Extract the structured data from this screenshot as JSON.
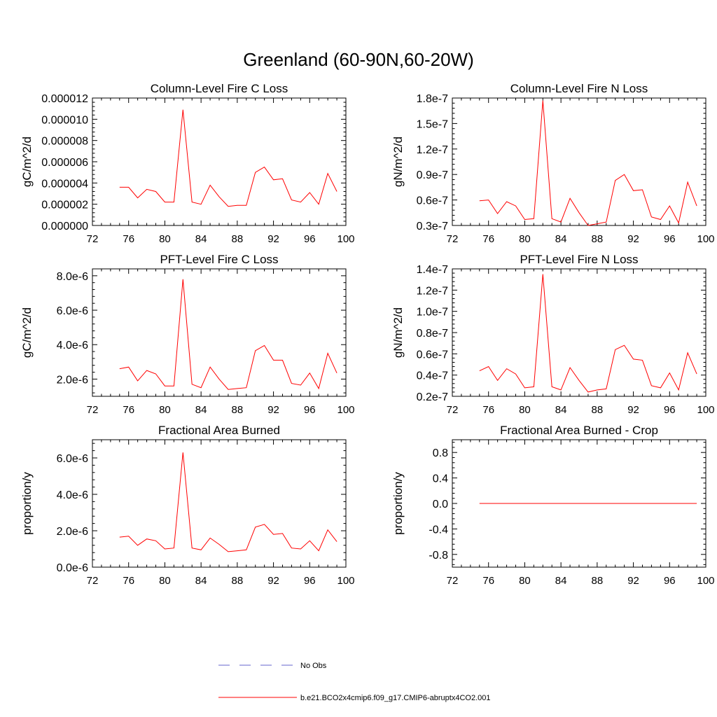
{
  "figure": {
    "title": "Greenland (60-90N,60-20W)"
  },
  "colors": {
    "model_line": "#ff0000",
    "obs_line": "#6666cc",
    "axis": "#000000",
    "background": "#ffffff"
  },
  "legend": {
    "obs_label": "No Obs",
    "model_label": "b.e21.BCO2x4cmip6.f09_g17.CMIP6-abruptx4CO2.001"
  },
  "chart_data": [
    {
      "type": "line",
      "title": "Column-Level Fire C Loss",
      "ylabel": "gC/m^2/d",
      "xlabel": "",
      "xlim": [
        72,
        100
      ],
      "ylim": [
        0,
        1.2e-05
      ],
      "xticks": [
        72,
        76,
        80,
        84,
        88,
        92,
        96,
        100
      ],
      "yticks": [
        0,
        2e-06,
        4e-06,
        6e-06,
        8e-06,
        1e-05,
        1.2e-05
      ],
      "ytick_labels": [
        "0.000000",
        "0.000002",
        "0.000004",
        "0.000006",
        "0.000008",
        "0.000010",
        "0.000012"
      ],
      "x": [
        75,
        76,
        77,
        78,
        79,
        80,
        81,
        82,
        83,
        84,
        85,
        86,
        87,
        88,
        89,
        90,
        91,
        92,
        93,
        94,
        95,
        96,
        97,
        98,
        99
      ],
      "series": [
        {
          "name": "b.e21.BCO2x4cmip6.f09_g17.CMIP6-abruptx4CO2.001",
          "values": [
            3.6e-06,
            3.6e-06,
            2.6e-06,
            3.4e-06,
            3.2e-06,
            2.2e-06,
            2.2e-06,
            1.09e-05,
            2.2e-06,
            2e-06,
            3.8e-06,
            2.7e-06,
            1.8e-06,
            1.9e-06,
            1.9e-06,
            5e-06,
            5.5e-06,
            4.3e-06,
            4.4e-06,
            2.4e-06,
            2.2e-06,
            3.1e-06,
            2e-06,
            4.9e-06,
            3.2e-06
          ]
        }
      ]
    },
    {
      "type": "line",
      "title": "Column-Level Fire N Loss",
      "ylabel": "gN/m^2/d",
      "xlabel": "",
      "xlim": [
        72,
        100
      ],
      "ylim": [
        3e-08,
        1.8e-07
      ],
      "xticks": [
        72,
        76,
        80,
        84,
        88,
        92,
        96,
        100
      ],
      "yticks": [
        3e-08,
        6e-08,
        9e-08,
        1.2e-07,
        1.5e-07,
        1.8e-07
      ],
      "ytick_labels": [
        "0.3e-7",
        "0.6e-7",
        "0.9e-7",
        "1.2e-7",
        "1.5e-7",
        "1.8e-7"
      ],
      "x": [
        75,
        76,
        77,
        78,
        79,
        80,
        81,
        82,
        83,
        84,
        85,
        86,
        87,
        88,
        89,
        90,
        91,
        92,
        93,
        94,
        95,
        96,
        97,
        98,
        99
      ],
      "series": [
        {
          "name": "b.e21.BCO2x4cmip6.f09_g17.CMIP6-abruptx4CO2.001",
          "values": [
            5.9e-08,
            6e-08,
            4.4e-08,
            5.8e-08,
            5.3e-08,
            3.7e-08,
            3.8e-08,
            1.77e-07,
            3.8e-08,
            3.4e-08,
            6.2e-08,
            4.5e-08,
            3e-08,
            3.2e-08,
            3.4e-08,
            8.3e-08,
            9e-08,
            7.1e-08,
            7.2e-08,
            4e-08,
            3.7e-08,
            5.3e-08,
            3.3e-08,
            8.1e-08,
            5.3e-08
          ]
        }
      ]
    },
    {
      "type": "line",
      "title": "PFT-Level Fire C Loss",
      "ylabel": "gC/m^2/d",
      "xlabel": "",
      "xlim": [
        72,
        100
      ],
      "ylim": [
        1e-06,
        8.4e-06
      ],
      "xticks": [
        72,
        76,
        80,
        84,
        88,
        92,
        96,
        100
      ],
      "yticks": [
        2e-06,
        4e-06,
        6e-06,
        8e-06
      ],
      "ytick_labels": [
        "2.0e-6",
        "4.0e-6",
        "6.0e-6",
        "8.0e-6"
      ],
      "x": [
        75,
        76,
        77,
        78,
        79,
        80,
        81,
        82,
        83,
        84,
        85,
        86,
        87,
        88,
        89,
        90,
        91,
        92,
        93,
        94,
        95,
        96,
        97,
        98,
        99
      ],
      "series": [
        {
          "name": "b.e21.BCO2x4cmip6.f09_g17.CMIP6-abruptx4CO2.001",
          "values": [
            2.6e-06,
            2.7e-06,
            1.9e-06,
            2.5e-06,
            2.3e-06,
            1.6e-06,
            1.6e-06,
            7.8e-06,
            1.7e-06,
            1.5e-06,
            2.7e-06,
            2e-06,
            1.4e-06,
            1.45e-06,
            1.5e-06,
            3.65e-06,
            3.95e-06,
            3.1e-06,
            3.1e-06,
            1.75e-06,
            1.65e-06,
            2.35e-06,
            1.45e-06,
            3.5e-06,
            2.35e-06
          ]
        }
      ]
    },
    {
      "type": "line",
      "title": "PFT-Level Fire N Loss",
      "ylabel": "gN/m^2/d",
      "xlabel": "",
      "xlim": [
        72,
        100
      ],
      "ylim": [
        2e-08,
        1.4e-07
      ],
      "xticks": [
        72,
        76,
        80,
        84,
        88,
        92,
        96,
        100
      ],
      "yticks": [
        2e-08,
        4e-08,
        6e-08,
        8e-08,
        1e-07,
        1.2e-07,
        1.4e-07
      ],
      "ytick_labels": [
        "0.2e-7",
        "0.4e-7",
        "0.6e-7",
        "0.8e-7",
        "1.0e-7",
        "1.2e-7",
        "1.4e-7"
      ],
      "x": [
        75,
        76,
        77,
        78,
        79,
        80,
        81,
        82,
        83,
        84,
        85,
        86,
        87,
        88,
        89,
        90,
        91,
        92,
        93,
        94,
        95,
        96,
        97,
        98,
        99
      ],
      "series": [
        {
          "name": "b.e21.BCO2x4cmip6.f09_g17.CMIP6-abruptx4CO2.001",
          "values": [
            4.4e-08,
            4.8e-08,
            3.5e-08,
            4.6e-08,
            4.1e-08,
            2.8e-08,
            2.9e-08,
            1.35e-07,
            2.9e-08,
            2.6e-08,
            4.7e-08,
            3.5e-08,
            2.4e-08,
            2.6e-08,
            2.7e-08,
            6.4e-08,
            6.8e-08,
            5.5e-08,
            5.4e-08,
            3e-08,
            2.8e-08,
            4.2e-08,
            2.6e-08,
            6.1e-08,
            4.1e-08
          ]
        }
      ]
    },
    {
      "type": "line",
      "title": "Fractional Area Burned",
      "ylabel": "proportion/y",
      "xlabel": "",
      "xlim": [
        72,
        100
      ],
      "ylim": [
        0,
        7e-06
      ],
      "xticks": [
        72,
        76,
        80,
        84,
        88,
        92,
        96,
        100
      ],
      "yticks": [
        0,
        2e-06,
        4e-06,
        6e-06
      ],
      "ytick_labels": [
        "0.0e-6",
        "2.0e-6",
        "4.0e-6",
        "6.0e-6"
      ],
      "x": [
        75,
        76,
        77,
        78,
        79,
        80,
        81,
        82,
        83,
        84,
        85,
        86,
        87,
        88,
        89,
        90,
        91,
        92,
        93,
        94,
        95,
        96,
        97,
        98,
        99
      ],
      "series": [
        {
          "name": "b.e21.BCO2x4cmip6.f09_g17.CMIP6-abruptx4CO2.001",
          "values": [
            1.65e-06,
            1.7e-06,
            1.2e-06,
            1.55e-06,
            1.45e-06,
            1e-06,
            1.05e-06,
            6.3e-06,
            1.05e-06,
            9.5e-07,
            1.6e-06,
            1.25e-06,
            8.5e-07,
            9e-07,
            9.5e-07,
            2.2e-06,
            2.35e-06,
            1.8e-06,
            1.85e-06,
            1.05e-06,
            1e-06,
            1.45e-06,
            9e-07,
            2.05e-06,
            1.4e-06
          ]
        }
      ]
    },
    {
      "type": "line",
      "title": "Fractional Area Burned - Crop",
      "ylabel": "proportion/y",
      "xlabel": "",
      "xlim": [
        72,
        100
      ],
      "ylim": [
        -1.0,
        1.0
      ],
      "xticks": [
        72,
        76,
        80,
        84,
        88,
        92,
        96,
        100
      ],
      "yticks": [
        -0.8,
        -0.4,
        0.0,
        0.4,
        0.8
      ],
      "ytick_labels": [
        "-0.8",
        "-0.4",
        "0.0",
        "0.4",
        "0.8"
      ],
      "x": [
        75,
        76,
        77,
        78,
        79,
        80,
        81,
        82,
        83,
        84,
        85,
        86,
        87,
        88,
        89,
        90,
        91,
        92,
        93,
        94,
        95,
        96,
        97,
        98,
        99
      ],
      "series": [
        {
          "name": "b.e21.BCO2x4cmip6.f09_g17.CMIP6-abruptx4CO2.001",
          "values": [
            0,
            0,
            0,
            0,
            0,
            0,
            0,
            0,
            0,
            0,
            0,
            0,
            0,
            0,
            0,
            0,
            0,
            0,
            0,
            0,
            0,
            0,
            0,
            0,
            0
          ]
        }
      ]
    }
  ]
}
